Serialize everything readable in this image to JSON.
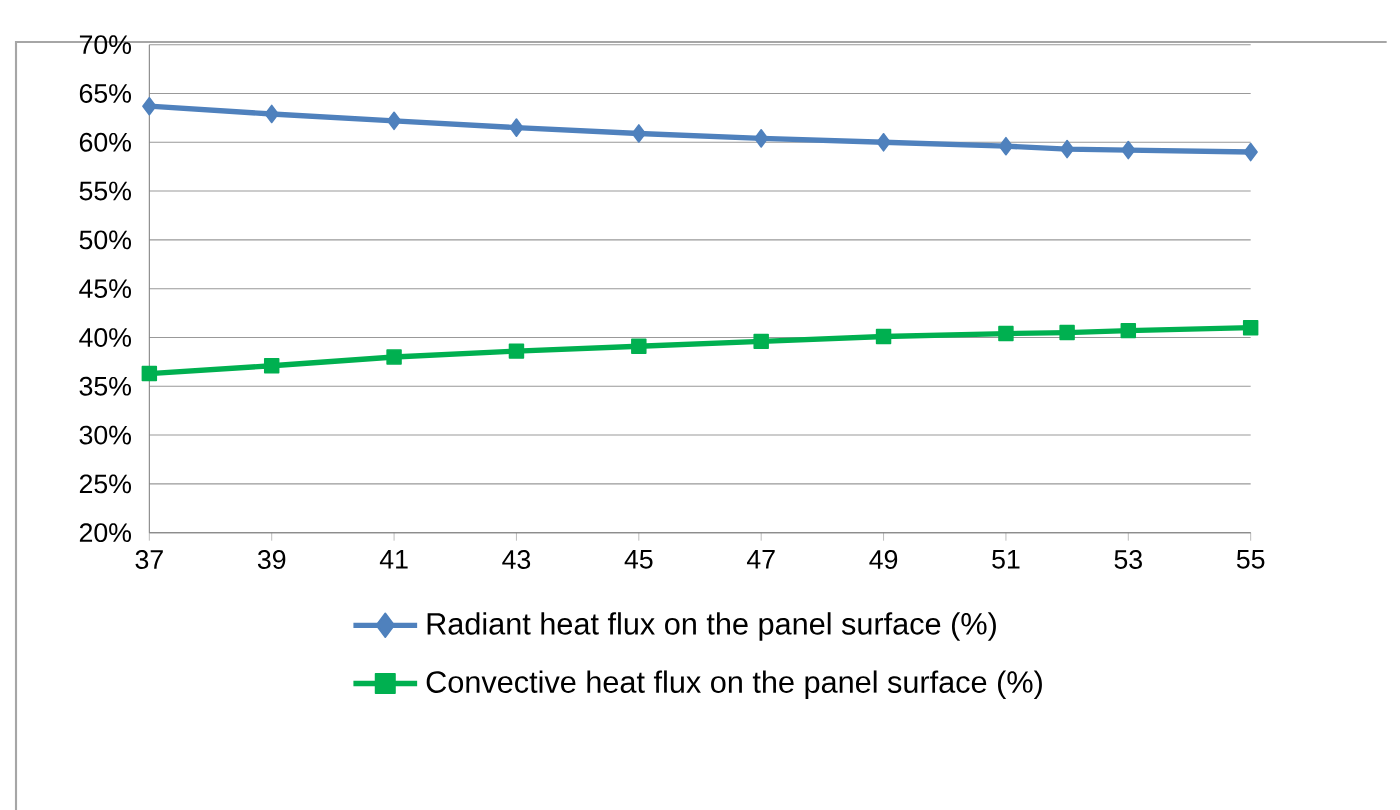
{
  "chart_data": {
    "type": "line",
    "x": [
      37,
      39,
      41,
      43,
      45,
      47,
      49,
      51,
      52,
      53,
      55
    ],
    "xlim": [
      37,
      55
    ],
    "xticks": [
      37,
      39,
      41,
      43,
      45,
      47,
      49,
      51,
      53,
      55
    ],
    "ylim": [
      20,
      70
    ],
    "yticks": [
      {
        "value": 20,
        "label": "20%"
      },
      {
        "value": 25,
        "label": "25%"
      },
      {
        "value": 30,
        "label": "30%"
      },
      {
        "value": 35,
        "label": "35%"
      },
      {
        "value": 40,
        "label": "40%"
      },
      {
        "value": 45,
        "label": "45%"
      },
      {
        "value": 50,
        "label": "50%"
      },
      {
        "value": 55,
        "label": "55%"
      },
      {
        "value": 60,
        "label": "60%"
      },
      {
        "value": 65,
        "label": "65%"
      },
      {
        "value": 70,
        "label": "70%"
      }
    ],
    "grid": "y",
    "legend": "bottom",
    "series": [
      {
        "name": "Radiant heat flux on the panel surface (%)",
        "color": "#4f81bd",
        "marker": "diamond",
        "values": [
          63.7,
          62.9,
          62.2,
          61.5,
          60.9,
          60.4,
          60.0,
          59.6,
          59.3,
          59.2,
          59.0
        ]
      },
      {
        "name": "Convective heat flux on the panel surface (%)",
        "color": "#00b050",
        "marker": "square",
        "values": [
          36.3,
          37.1,
          38.0,
          38.6,
          39.1,
          39.6,
          40.1,
          40.4,
          40.5,
          40.7,
          41.0
        ]
      }
    ]
  }
}
